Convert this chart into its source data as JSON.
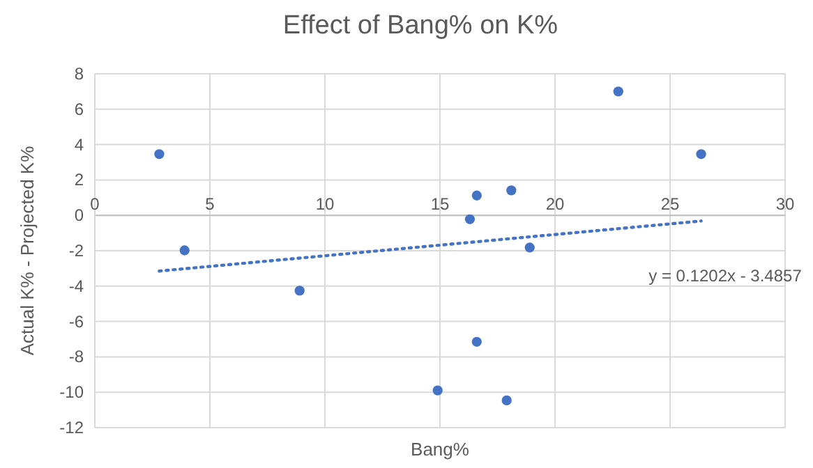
{
  "chart_data": {
    "type": "scatter",
    "title": "Effect of Bang% on K%",
    "xlabel": "Bang%",
    "ylabel": "Actual K% - Projected K%",
    "xlim": [
      0,
      30
    ],
    "xticks": [
      0,
      5,
      10,
      15,
      20,
      25,
      30
    ],
    "ylim": [
      -12,
      8
    ],
    "yticks": [
      -12,
      -10,
      -8,
      -6,
      -4,
      -2,
      0,
      2,
      4,
      6,
      8
    ],
    "grid": true,
    "marker": "circle",
    "annotations": [
      "y = 0.1202x - 3.4857"
    ],
    "series": [
      {
        "color": "#4472c4",
        "x": [
          2.8,
          3.9,
          8.9,
          22.75,
          26.35,
          16.6,
          18.1,
          16.3,
          18.9,
          16.6,
          14.9,
          17.9
        ],
        "values": [
          3.46,
          -1.98,
          -4.26,
          7.0,
          3.46,
          1.12,
          1.41,
          -0.22,
          -1.82,
          -7.15,
          -9.9,
          -10.46
        ]
      },
      {
        "type": "line",
        "color": "#4472c4",
        "line_style": "dotted",
        "marker": "none",
        "x": [
          2.8,
          26.35
        ],
        "values": [
          -3.15,
          -0.32
        ]
      }
    ]
  }
}
